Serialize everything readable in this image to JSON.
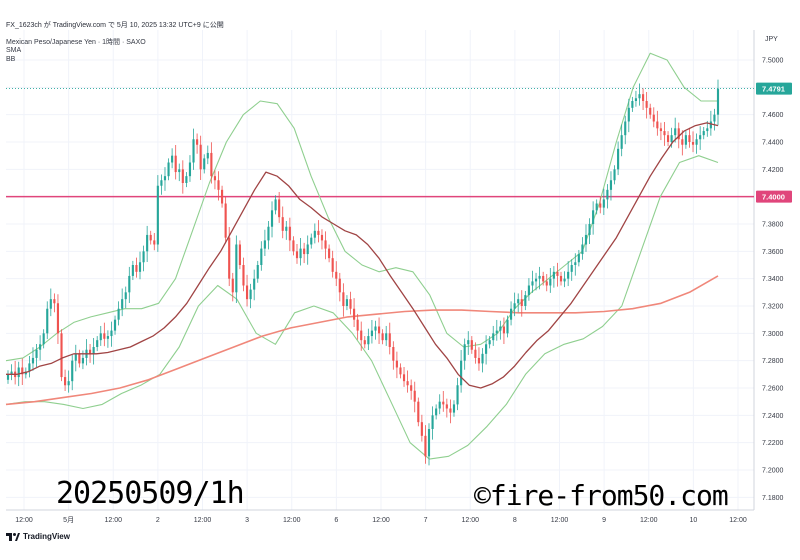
{
  "header": {
    "author_line": "FX_1623ch が TradingView.com で 5月 10, 2025 13:32 UTC+9 に公開",
    "symbol_line": "Mexican Peso/Japanese Yen · 1時間 · SAXO",
    "indicator1": "SMA",
    "indicator2": "BB",
    "currency": "JPY"
  },
  "footer": {
    "brand": "TradingView",
    "date_label": "20250509/1h",
    "copyright": "©fire-from50.com"
  },
  "colors": {
    "up": "#26a69a",
    "down": "#ef5350",
    "sma_short": "#a04444",
    "sma_long": "#f0877a",
    "bb": "#8fcf8f",
    "hline": "#e0457b",
    "last_price": "#26a69a"
  },
  "chart_data": {
    "type": "candlestick",
    "title": "Mexican Peso/Japanese Yen · 1時間 · SAXO",
    "ylim": [
      7.17,
      7.52
    ],
    "y_ticks": [
      "7.1800",
      "7.2000",
      "7.2200",
      "7.2400",
      "7.2600",
      "7.2800",
      "7.3000",
      "7.3200",
      "7.3400",
      "7.3600",
      "7.3800",
      "7.4000",
      "7.4200",
      "7.4400",
      "7.4600",
      "7.4800",
      "7.5000"
    ],
    "x_ticks": [
      "12:00",
      "5月",
      "12:00",
      "2",
      "12:00",
      "3",
      "12:00",
      "6",
      "12:00",
      "7",
      "12:00",
      "8",
      "12:00",
      "9",
      "12:00",
      "10",
      "12:00"
    ],
    "x_tick_positions": [
      6,
      18,
      30,
      42,
      54,
      66,
      78,
      90,
      102,
      114,
      126,
      138,
      150,
      162,
      174,
      186,
      198
    ],
    "last_price": 7.4791,
    "last_price_label": "7.4791",
    "horizontal_line": 7.4,
    "horizontal_line_label": "7.4000",
    "close": [
      7.27,
      7.272,
      7.268,
      7.275,
      7.27,
      7.272,
      7.278,
      7.282,
      7.288,
      7.292,
      7.3,
      7.318,
      7.325,
      7.322,
      7.3,
      7.268,
      7.262,
      7.265,
      7.28,
      7.285,
      7.278,
      7.282,
      7.288,
      7.285,
      7.29,
      7.295,
      7.3,
      7.296,
      7.298,
      7.302,
      7.31,
      7.318,
      7.325,
      7.33,
      7.342,
      7.35,
      7.345,
      7.352,
      7.36,
      7.372,
      7.368,
      7.365,
      7.408,
      7.412,
      7.415,
      7.425,
      7.43,
      7.418,
      7.42,
      7.41,
      7.415,
      7.425,
      7.442,
      7.438,
      7.42,
      7.428,
      7.432,
      7.415,
      7.412,
      7.405,
      7.395,
      7.37,
      7.34,
      7.33,
      7.365,
      7.35,
      7.335,
      7.325,
      7.332,
      7.34,
      7.35,
      7.362,
      7.368,
      7.378,
      7.39,
      7.398,
      7.385,
      7.375,
      7.378,
      7.368,
      7.36,
      7.355,
      7.362,
      7.358,
      7.365,
      7.37,
      7.375,
      7.372,
      7.368,
      7.362,
      7.355,
      7.345,
      7.34,
      7.33,
      7.32,
      7.325,
      7.318,
      7.31,
      7.302,
      7.295,
      7.292,
      7.298,
      7.302,
      7.305,
      7.3,
      7.295,
      7.3,
      7.29,
      7.28,
      7.275,
      7.27,
      7.265,
      7.262,
      7.258,
      7.25,
      7.235,
      7.225,
      7.21,
      7.23,
      7.24,
      7.245,
      7.25,
      7.248,
      7.245,
      7.242,
      7.248,
      7.262,
      7.28,
      7.292,
      7.295,
      7.288,
      7.282,
      7.278,
      7.285,
      7.292,
      7.295,
      7.3,
      7.302,
      7.305,
      7.3,
      7.31,
      7.318,
      7.322,
      7.325,
      7.32,
      7.328,
      7.335,
      7.338,
      7.34,
      7.342,
      7.338,
      7.335,
      7.34,
      7.345,
      7.342,
      7.338,
      7.34,
      7.345,
      7.35,
      7.352,
      7.358,
      7.365,
      7.372,
      7.38,
      7.39,
      7.395,
      7.392,
      7.398,
      7.405,
      7.412,
      7.42,
      7.435,
      7.445,
      7.455,
      7.465,
      7.47,
      7.472,
      7.475,
      7.47,
      7.465,
      7.46,
      7.455,
      7.45,
      7.448,
      7.445,
      7.44,
      7.445,
      7.45,
      7.442,
      7.438,
      7.445,
      7.44,
      7.438,
      7.442,
      7.445,
      7.448,
      7.45,
      7.455,
      7.46,
      7.479
    ],
    "sma_short": [
      7.27,
      7.27,
      7.272,
      7.276,
      7.278,
      7.282,
      7.285,
      7.285,
      7.285,
      7.286,
      7.288,
      7.29,
      7.294,
      7.298,
      7.304,
      7.312,
      7.322,
      7.335,
      7.348,
      7.36,
      7.375,
      7.39,
      7.405,
      7.418,
      7.415,
      7.408,
      7.398,
      7.392,
      7.385,
      7.38,
      7.375,
      7.372,
      7.365,
      7.355,
      7.342,
      7.33,
      7.318,
      7.305,
      7.292,
      7.282,
      7.27,
      7.262,
      7.26,
      7.263,
      7.268,
      7.276,
      7.286,
      7.295,
      7.302,
      7.312,
      7.322,
      7.334,
      7.346,
      7.358,
      7.37,
      7.385,
      7.4,
      7.415,
      7.428,
      7.44,
      7.448,
      7.452,
      7.454,
      7.452
    ],
    "sma_long": [
      7.248,
      7.25,
      7.253,
      7.256,
      7.26,
      7.266,
      7.274,
      7.282,
      7.29,
      7.298,
      7.304,
      7.308,
      7.312,
      7.314,
      7.316,
      7.317,
      7.317,
      7.316,
      7.315,
      7.315,
      7.315,
      7.316,
      7.318,
      7.322,
      7.33,
      7.342
    ],
    "bb_upper": [
      7.28,
      7.282,
      7.29,
      7.3,
      7.308,
      7.312,
      7.315,
      7.318,
      7.318,
      7.322,
      7.34,
      7.375,
      7.41,
      7.44,
      7.46,
      7.47,
      7.468,
      7.45,
      7.415,
      7.385,
      7.36,
      7.35,
      7.345,
      7.348,
      7.345,
      7.328,
      7.3,
      7.29,
      7.292,
      7.3,
      7.318,
      7.33,
      7.34,
      7.35,
      7.36,
      7.395,
      7.44,
      7.48,
      7.505,
      7.5,
      7.48,
      7.47,
      7.47
    ],
    "bb_lower": [
      7.248,
      7.25,
      7.25,
      7.248,
      7.245,
      7.248,
      7.256,
      7.262,
      7.27,
      7.29,
      7.32,
      7.335,
      7.325,
      7.3,
      7.292,
      7.315,
      7.32,
      7.315,
      7.3,
      7.28,
      7.25,
      7.22,
      7.208,
      7.21,
      7.218,
      7.232,
      7.248,
      7.27,
      7.285,
      7.292,
      7.296,
      7.305,
      7.32,
      7.36,
      7.4,
      7.425,
      7.43,
      7.425
    ]
  }
}
